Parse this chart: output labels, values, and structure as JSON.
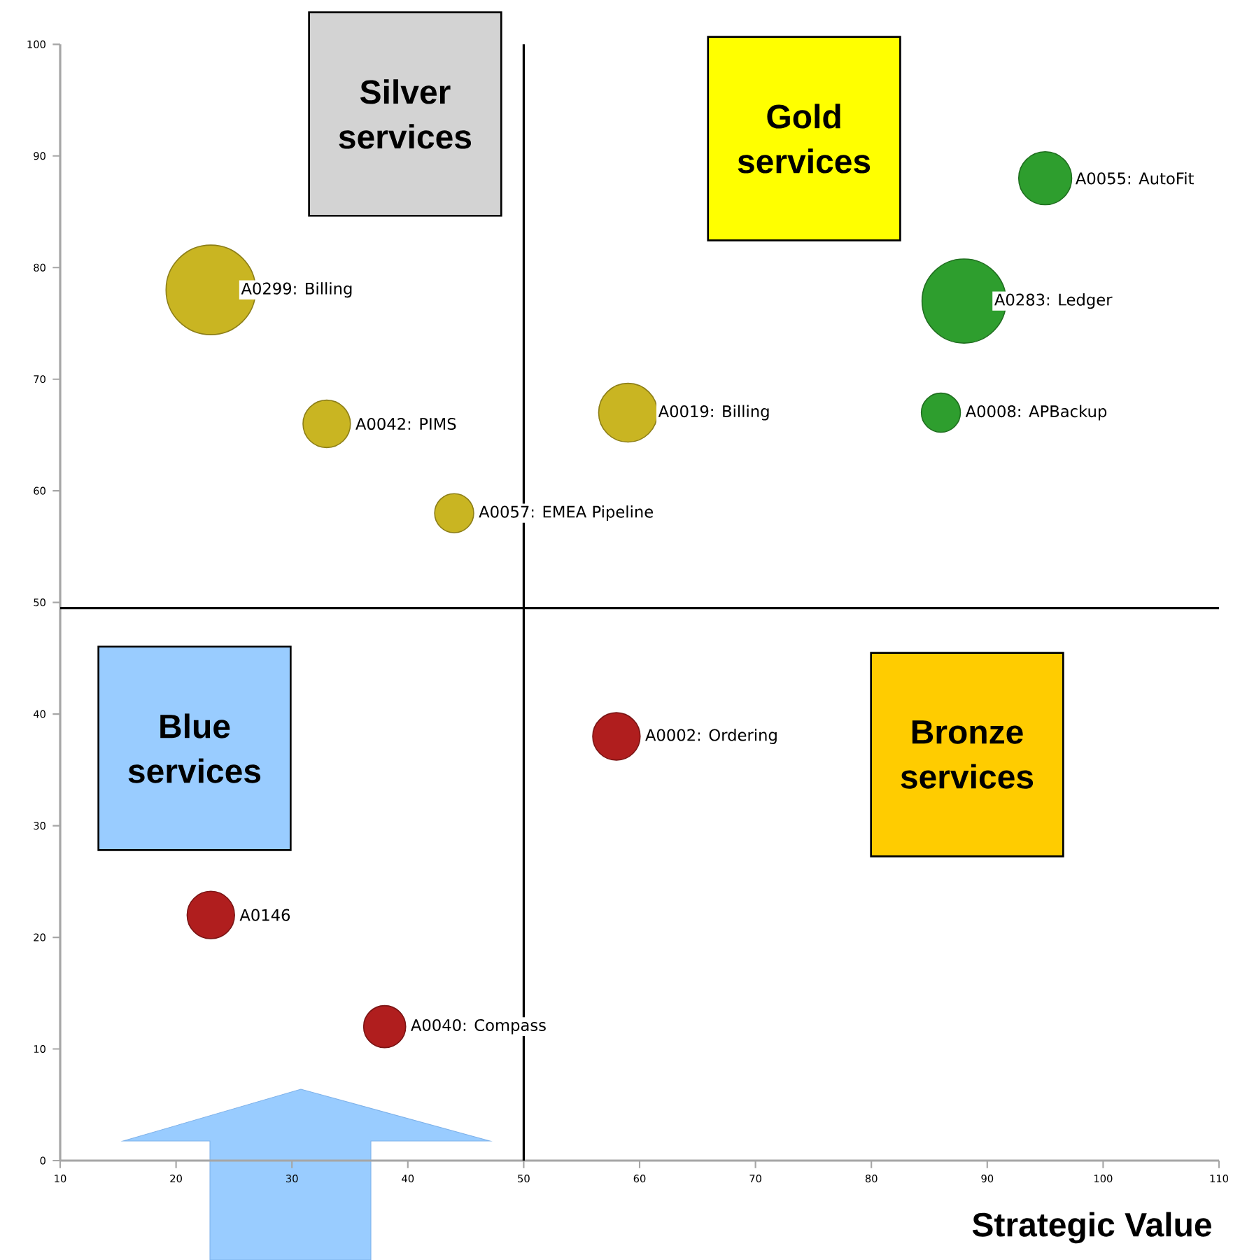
{
  "chart_data": {
    "type": "bubble",
    "xlabel": "Strategic Value",
    "xlim": [
      10,
      110
    ],
    "ylim": [
      0,
      100
    ],
    "xticks": [
      10,
      20,
      30,
      40,
      50,
      60,
      70,
      80,
      90,
      100,
      110
    ],
    "yticks": [
      0,
      10,
      20,
      30,
      40,
      50,
      60,
      70,
      80,
      90,
      100
    ],
    "series": [
      {
        "color": "#c9b522",
        "x": [
          23,
          33,
          59,
          44
        ],
        "values": [
          78,
          66,
          67,
          58
        ],
        "sizes": [
          1,
          0.28,
          0.43,
          0.19
        ]
      },
      {
        "color": "#2e9e2e",
        "x": [
          95,
          88,
          86
        ],
        "values": [
          88,
          77,
          67
        ],
        "sizes": [
          0.35,
          0.88,
          0.19
        ]
      },
      {
        "color": "#b01e1e",
        "x": [
          58,
          23,
          38
        ],
        "values": [
          38,
          22,
          12
        ],
        "sizes": [
          0.28,
          0.28,
          0.22
        ]
      }
    ],
    "ref_lines": [
      {
        "axis": "x",
        "value": 50,
        "color": "#000000"
      },
      {
        "axis": "y",
        "value": 49.5,
        "color": "#000000"
      }
    ],
    "annotations": [
      "Silver services",
      "Gold services",
      "Blue services",
      "Bronze services",
      {
        "text": "A0299: Billing",
        "x": 23,
        "y": 78
      },
      {
        "text": "A0042: PIMS",
        "x": 33,
        "y": 66
      },
      {
        "text": "A0019: Billing",
        "x": 59,
        "y": 67
      },
      {
        "text": "A0057: EMEA Pipeline",
        "x": 44,
        "y": 58
      },
      {
        "text": "A0055: AutoFit",
        "x": 95,
        "y": 88
      },
      {
        "text": "A0283: Ledger",
        "x": 88,
        "y": 77
      },
      {
        "text": "A0008: APBackup",
        "x": 86,
        "y": 67
      },
      {
        "text": "A0002: Ordering",
        "x": 58,
        "y": 38
      },
      {
        "text": "A0146",
        "x": 23,
        "y": 22
      },
      {
        "text": "A0040: Compass",
        "x": 38,
        "y": 12
      }
    ]
  }
}
